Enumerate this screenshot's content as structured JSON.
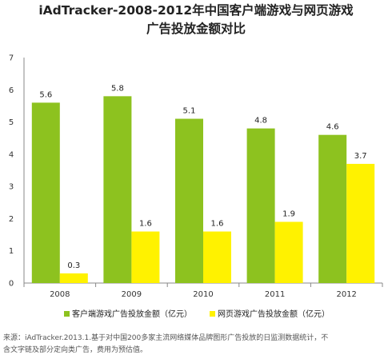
{
  "chart_data": {
    "type": "bar",
    "title": [
      "iAdTracker-2008-2012年中国客户端游戏与网页游戏",
      "广告投放金额对比"
    ],
    "xlabel": "",
    "ylabel": "",
    "categories": [
      "2008",
      "2009",
      "2010",
      "2011",
      "2012"
    ],
    "yticks": [
      "0",
      "1",
      "2",
      "3",
      "4",
      "5",
      "6",
      "7"
    ],
    "ylim": [
      0,
      7
    ],
    "grid": false,
    "legend_position": "bottom",
    "series": [
      {
        "name": "客户端游戏广告投放金额（亿元）",
        "values": [
          5.6,
          5.8,
          5.1,
          4.8,
          4.6
        ],
        "value_labels": [
          "5.6",
          "5.8",
          "5.1",
          "4.8",
          "4.6"
        ],
        "color": "#8dc21f"
      },
      {
        "name": "网页游戏广告投放金额（亿元）",
        "values": [
          0.3,
          1.6,
          1.6,
          1.9,
          3.7
        ],
        "value_labels": [
          "0.3",
          "1.6",
          "1.6",
          "1.9",
          "3.7"
        ],
        "color": "#fff200"
      }
    ]
  },
  "source": [
    "来源：iAdTracker.2013.1.基于对中国200多家主流网络媒体品牌图形广告投放的日监测数据统计，不",
    "含文字链及部分定向类广告，费用为预估值。"
  ]
}
